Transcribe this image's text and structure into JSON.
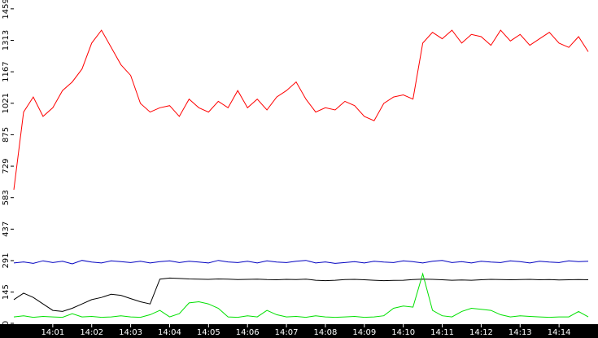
{
  "chart_data": {
    "type": "line",
    "x": [
      "14:00:00",
      "14:00:15",
      "14:00:30",
      "14:00:45",
      "14:01:00",
      "14:01:15",
      "14:01:30",
      "14:01:45",
      "14:02:00",
      "14:02:15",
      "14:02:30",
      "14:02:45",
      "14:03:00",
      "14:03:15",
      "14:03:30",
      "14:03:45",
      "14:04:00",
      "14:04:15",
      "14:04:30",
      "14:04:45",
      "14:05:00",
      "14:05:15",
      "14:05:30",
      "14:05:45",
      "14:06:00",
      "14:06:15",
      "14:06:30",
      "14:06:45",
      "14:07:00",
      "14:07:15",
      "14:07:30",
      "14:07:45",
      "14:08:00",
      "14:08:15",
      "14:08:30",
      "14:08:45",
      "14:09:00",
      "14:09:15",
      "14:09:30",
      "14:09:45",
      "14:10:00",
      "14:10:15",
      "14:10:30",
      "14:10:45",
      "14:11:00",
      "14:11:15",
      "14:11:30",
      "14:11:45",
      "14:12:00",
      "14:12:15",
      "14:12:30",
      "14:12:45",
      "14:13:00",
      "14:13:15",
      "14:13:30",
      "14:13:45",
      "14:14:00",
      "14:14:15",
      "14:14:30",
      "14:14:45"
    ],
    "series": [
      {
        "color": "#ff0000",
        "values": [
          620,
          980,
          1050,
          960,
          1000,
          1080,
          1120,
          1180,
          1300,
          1360,
          1280,
          1200,
          1150,
          1020,
          980,
          1000,
          1010,
          960,
          1040,
          1000,
          980,
          1030,
          1000,
          1080,
          1000,
          1040,
          990,
          1050,
          1080,
          1120,
          1040,
          980,
          1000,
          990,
          1030,
          1010,
          960,
          940,
          1020,
          1050,
          1060,
          1040,
          1300,
          1350,
          1320,
          1360,
          1300,
          1340,
          1330,
          1290,
          1360,
          1310,
          1340,
          1290,
          1320,
          1350,
          1300,
          1280,
          1330,
          1260
        ]
      },
      {
        "color": "#0000c0",
        "values": [
          280,
          285,
          278,
          290,
          282,
          288,
          276,
          292,
          284,
          280,
          290,
          286,
          282,
          288,
          280,
          286,
          290,
          282,
          288,
          284,
          280,
          292,
          285,
          282,
          288,
          280,
          290,
          284,
          282,
          288,
          292,
          280,
          285,
          278,
          282,
          286,
          280,
          288,
          284,
          282,
          290,
          286,
          280,
          288,
          292,
          282,
          286,
          280,
          288,
          284,
          282,
          290,
          286,
          280,
          288,
          284,
          282,
          290,
          286,
          288
        ]
      },
      {
        "color": "#000000",
        "values": [
          110,
          140,
          120,
          90,
          60,
          55,
          70,
          90,
          110,
          120,
          135,
          130,
          115,
          100,
          90,
          205,
          210,
          208,
          206,
          205,
          204,
          206,
          205,
          203,
          204,
          205,
          203,
          202,
          204,
          203,
          205,
          200,
          198,
          200,
          203,
          204,
          202,
          200,
          198,
          199,
          200,
          203,
          205,
          204,
          202,
          200,
          201,
          200,
          202,
          204,
          203,
          202,
          203,
          204,
          202,
          203,
          201,
          202,
          203,
          202
        ]
      },
      {
        "color": "#00e000",
        "values": [
          30,
          35,
          28,
          32,
          30,
          28,
          45,
          30,
          32,
          28,
          30,
          35,
          30,
          28,
          40,
          60,
          30,
          45,
          95,
          100,
          90,
          70,
          30,
          28,
          35,
          30,
          60,
          40,
          30,
          32,
          28,
          35,
          30,
          28,
          30,
          32,
          28,
          30,
          35,
          70,
          80,
          75,
          230,
          60,
          35,
          30,
          55,
          70,
          65,
          60,
          40,
          30,
          35,
          32,
          30,
          28,
          30,
          30,
          55,
          30
        ]
      }
    ],
    "xlim": [
      "14:00:00",
      "14:15:00"
    ],
    "xticks": [
      {
        "value": "14:01:00",
        "label": "14:01"
      },
      {
        "value": "14:02:00",
        "label": "14:02"
      },
      {
        "value": "14:03:00",
        "label": "14:03"
      },
      {
        "value": "14:04:00",
        "label": "14:04"
      },
      {
        "value": "14:05:00",
        "label": "14:05"
      },
      {
        "value": "14:06:00",
        "label": "14:06"
      },
      {
        "value": "14:07:00",
        "label": "14:07"
      },
      {
        "value": "14:08:00",
        "label": "14:08"
      },
      {
        "value": "14:09:00",
        "label": "14:09"
      },
      {
        "value": "14:10:00",
        "label": "14:10"
      },
      {
        "value": "14:11:00",
        "label": "14:11"
      },
      {
        "value": "14:12:00",
        "label": "14:12"
      },
      {
        "value": "14:13:00",
        "label": "14:13"
      },
      {
        "value": "14:14:00",
        "label": "14:14"
      }
    ],
    "ylim": [
      0,
      1500
    ],
    "yticks": [
      0,
      145,
      291,
      437,
      583,
      729,
      875,
      1021,
      1167,
      1313,
      1459
    ]
  }
}
